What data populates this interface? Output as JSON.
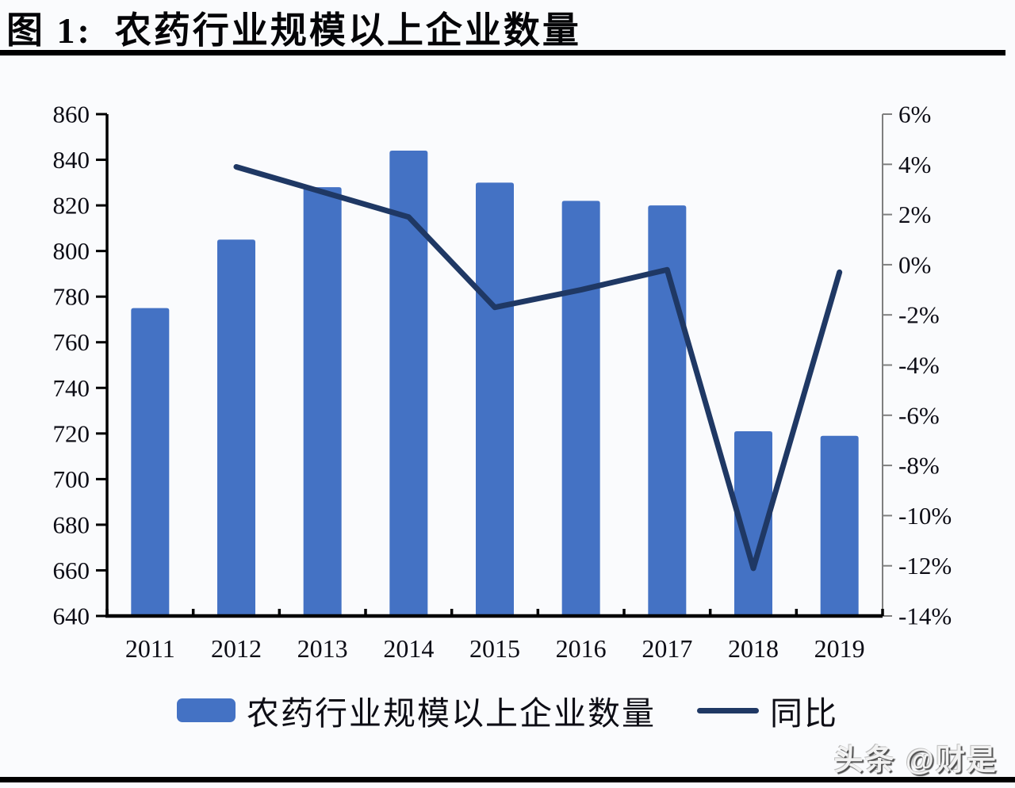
{
  "page": {
    "title": "图 1:  农药行业规模以上企业数量",
    "watermark": "头条 @财是",
    "background": "#fafbfd"
  },
  "colors": {
    "bar": "#4472C4",
    "line": "#1F3864",
    "axis_left": "#000000",
    "axis_bottom": "#000000",
    "axis_right": "#7f7f7f",
    "tick_text": "#0c0c15",
    "rule": "#000000"
  },
  "chart_data": {
    "type": "bar",
    "subtype": "bar+line combo, dual axis",
    "title": "农药行业规模以上企业数量",
    "categories": [
      "2011",
      "2012",
      "2013",
      "2014",
      "2015",
      "2016",
      "2017",
      "2018",
      "2019"
    ],
    "series": [
      {
        "name": "农药行业规模以上企业数量",
        "type": "bar",
        "axis": "left",
        "color": "#4472C4",
        "values": [
          775,
          805,
          828,
          844,
          830,
          822,
          820,
          721,
          719
        ]
      },
      {
        "name": "同比",
        "type": "line",
        "axis": "right",
        "color": "#1F3864",
        "unit": "%",
        "values": [
          null,
          3.9,
          2.9,
          1.9,
          -1.7,
          -1.0,
          -0.2,
          -12.1,
          -0.3
        ]
      }
    ],
    "left_axis": {
      "min": 640,
      "max": 860,
      "step": 20,
      "labels": [
        "860",
        "840",
        "820",
        "800",
        "780",
        "760",
        "740",
        "720",
        "700",
        "680",
        "660",
        "640"
      ]
    },
    "right_axis": {
      "min": -14,
      "max": 6,
      "step": 2,
      "suffix": "%",
      "labels": [
        "6%",
        "4%",
        "2%",
        "0%",
        "-2%",
        "-4%",
        "-6%",
        "-8%",
        "-10%",
        "-12%",
        "-14%"
      ]
    },
    "legend": [
      "农药行业规模以上企业数量",
      "同比"
    ],
    "legend_position": "bottom",
    "grid": false,
    "xlabel": "",
    "ylabel": ""
  }
}
